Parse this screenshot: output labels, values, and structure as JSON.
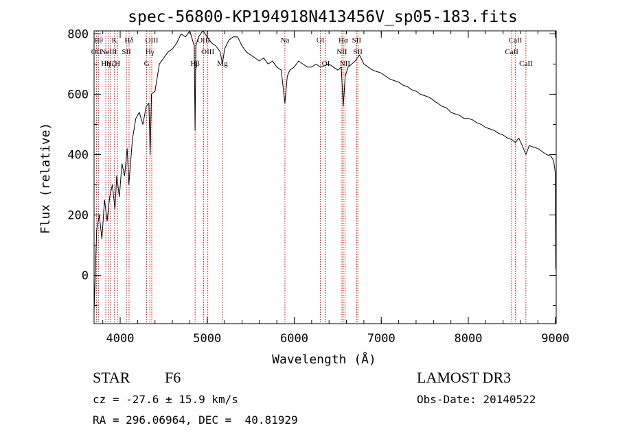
{
  "colors": {
    "foreground": "#000000",
    "line_marker": "#cc0000",
    "background": "#ffffff"
  },
  "chart_data": {
    "type": "line",
    "title": "spec-56800-KP194918N413456V_sp05-183.fits",
    "xlabel": "Wavelength (Å)",
    "ylabel": "Flux (relative)",
    "xlim": [
      3700,
      9010
    ],
    "ylim": [
      -160,
      810
    ],
    "xticks": [
      4000,
      5000,
      6000,
      7000,
      8000,
      9000
    ],
    "yticks": [
      0,
      200,
      400,
      600,
      800
    ],
    "x_minor_step": 200,
    "y_minor_step": 100,
    "series": [
      {
        "name": "flux",
        "x": [
          3700,
          3730,
          3760,
          3790,
          3820,
          3850,
          3880,
          3910,
          3940,
          3960,
          3990,
          4020,
          4050,
          4080,
          4100,
          4140,
          4180,
          4220,
          4260,
          4300,
          4330,
          4345,
          4360,
          4400,
          4450,
          4500,
          4550,
          4600,
          4650,
          4700,
          4750,
          4800,
          4850,
          4861,
          4870,
          4900,
          4950,
          5000,
          5050,
          5100,
          5150,
          5175,
          5200,
          5250,
          5300,
          5350,
          5400,
          5450,
          5500,
          5550,
          5600,
          5650,
          5700,
          5750,
          5800,
          5850,
          5893,
          5920,
          5950,
          6000,
          6050,
          6100,
          6150,
          6200,
          6250,
          6300,
          6350,
          6400,
          6450,
          6500,
          6540,
          6563,
          6585,
          6620,
          6660,
          6700,
          6750,
          6800,
          6850,
          6900,
          6950,
          7000,
          7050,
          7100,
          7150,
          7200,
          7250,
          7300,
          7350,
          7400,
          7450,
          7500,
          7550,
          7600,
          7620,
          7650,
          7700,
          7750,
          7800,
          7850,
          7900,
          7950,
          8000,
          8050,
          8100,
          8150,
          8200,
          8250,
          8300,
          8350,
          8400,
          8450,
          8500,
          8542,
          8580,
          8620,
          8662,
          8700,
          8750,
          8800,
          8850,
          8900,
          8950,
          8980,
          9000,
          9005
        ],
        "values": [
          -120,
          150,
          200,
          120,
          250,
          180,
          260,
          300,
          220,
          330,
          260,
          370,
          330,
          420,
          300,
          450,
          520,
          540,
          500,
          560,
          570,
          400,
          600,
          610,
          700,
          720,
          740,
          750,
          770,
          800,
          790,
          810,
          760,
          480,
          760,
          790,
          810,
          790,
          770,
          760,
          740,
          700,
          750,
          780,
          790,
          790,
          760,
          740,
          730,
          720,
          710,
          720,
          700,
          710,
          690,
          680,
          570,
          660,
          680,
          690,
          710,
          700,
          690,
          690,
          700,
          690,
          695,
          700,
          690,
          680,
          690,
          560,
          660,
          690,
          700,
          710,
          730,
          700,
          690,
          680,
          675,
          670,
          660,
          650,
          645,
          640,
          630,
          625,
          615,
          610,
          600,
          595,
          590,
          580,
          575,
          570,
          560,
          555,
          540,
          535,
          530,
          520,
          520,
          515,
          505,
          500,
          490,
          485,
          480,
          470,
          465,
          455,
          450,
          440,
          455,
          430,
          400,
          430,
          425,
          420,
          410,
          400,
          395,
          380,
          340,
          20
        ]
      }
    ],
    "lines": [
      {
        "x": 3727,
        "labels": [
          "OII"
        ],
        "row": 2
      },
      {
        "x": 3750,
        "labels": [
          "Hθ"
        ],
        "row": 1
      },
      {
        "x": 3835,
        "labels": [
          "Hη"
        ],
        "row": 3
      },
      {
        "x": 3869,
        "labels": [
          "NeIII"
        ],
        "row": 2
      },
      {
        "x": 3889,
        "labels": [
          "Hζ"
        ],
        "row": 3
      },
      {
        "x": 3934,
        "labels": [
          "K"
        ],
        "row": 1
      },
      {
        "x": 3969,
        "labels": [
          "H"
        ],
        "row": 3
      },
      {
        "x": 4072,
        "labels": [
          "SII"
        ],
        "row": 2
      },
      {
        "x": 4102,
        "labels": [
          "Hδ"
        ],
        "row": 1
      },
      {
        "x": 4304,
        "labels": [
          "G"
        ],
        "row": 3
      },
      {
        "x": 4341,
        "labels": [
          "Hγ"
        ],
        "row": 2
      },
      {
        "x": 4363,
        "labels": [
          "OIII"
        ],
        "row": 1
      },
      {
        "x": 4861,
        "labels": [
          "Hβ"
        ],
        "row": 3
      },
      {
        "x": 4959,
        "labels": [
          "OIII"
        ],
        "row": 1
      },
      {
        "x": 5007,
        "labels": [
          "OIII"
        ],
        "row": 2
      },
      {
        "x": 5175,
        "labels": [
          "Mg"
        ],
        "row": 3
      },
      {
        "x": 5893,
        "labels": [
          "Na"
        ],
        "row": 1
      },
      {
        "x": 6300,
        "labels": [
          "OI"
        ],
        "row": 1
      },
      {
        "x": 6363,
        "labels": [
          "OI"
        ],
        "row": 3
      },
      {
        "x": 6548,
        "labels": [
          "NII"
        ],
        "row": 2
      },
      {
        "x": 6563,
        "labels": [
          "Hα"
        ],
        "row": 1
      },
      {
        "x": 6583,
        "labels": [
          "NII"
        ],
        "row": 3
      },
      {
        "x": 6717,
        "labels": [
          "SII"
        ],
        "row": 1
      },
      {
        "x": 6731,
        "labels": [
          "SII"
        ],
        "row": 2
      },
      {
        "x": 8498,
        "labels": [
          "CaII"
        ],
        "row": 2
      },
      {
        "x": 8542,
        "labels": [
          "CaII"
        ],
        "row": 1
      },
      {
        "x": 8662,
        "labels": [
          "CaII"
        ],
        "row": 3
      }
    ]
  },
  "info": {
    "object_class": "STAR",
    "subclass": "F6",
    "survey": "LAMOST DR3",
    "redshift": "cz = -27.6 ± 15.9 km/s",
    "obs_date": "Obs-Date: 20140522",
    "coords": "RA = 296.06964, DEC =  40.81929"
  }
}
